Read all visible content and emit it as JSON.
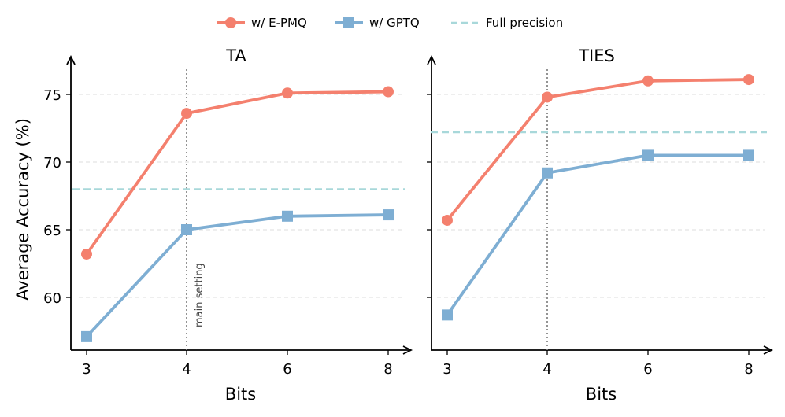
{
  "legend": {
    "placement": "top-center",
    "entries": [
      {
        "label": "w/ E-PMQ",
        "color": "#F4806E",
        "marker": "circle",
        "style": "solid"
      },
      {
        "label": "w/ GPTQ",
        "color": "#7EAED3",
        "marker": "square",
        "style": "solid"
      },
      {
        "label": "Full precision",
        "color": "#A8D8DA",
        "marker": "none",
        "style": "dashed"
      }
    ]
  },
  "ylabel_text": "Average Accuracy (%)",
  "chart_data": [
    {
      "type": "line",
      "title": "TA",
      "xlabel": "Bits",
      "ylabel": "Average Accuracy (%)",
      "categories": [
        "3",
        "4",
        "6",
        "8"
      ],
      "x": [
        3,
        4,
        6,
        8
      ],
      "ylim": [
        56.0,
        77.5
      ],
      "yticks": [
        60,
        65,
        70,
        75
      ],
      "ytick_labels": [
        "60",
        "65",
        "70",
        "75"
      ],
      "grid": "y-dashed",
      "series": [
        {
          "name": "w/ E-PMQ",
          "color": "#F4806E",
          "marker": "circle",
          "values": [
            63.2,
            73.6,
            75.1,
            75.2
          ]
        },
        {
          "name": "w/ GPTQ",
          "color": "#7EAED3",
          "marker": "square",
          "values": [
            57.1,
            65.0,
            66.0,
            66.1
          ]
        }
      ],
      "reference_line": {
        "name": "Full precision",
        "value": 68.0,
        "color": "#A8D8DA"
      },
      "annotation": {
        "text": "main setting",
        "x": 4
      }
    },
    {
      "type": "line",
      "title": "TIES",
      "xlabel": "Bits",
      "ylabel": "",
      "categories": [
        "3",
        "4",
        "6",
        "8"
      ],
      "x": [
        3,
        4,
        6,
        8
      ],
      "ylim": [
        56.0,
        77.5
      ],
      "yticks": [
        60,
        65,
        70,
        75
      ],
      "ytick_labels": [
        "",
        "",
        "",
        ""
      ],
      "grid": "y-dashed",
      "series": [
        {
          "name": "w/ E-PMQ",
          "color": "#F4806E",
          "marker": "circle",
          "values": [
            65.7,
            74.8,
            76.0,
            76.1
          ]
        },
        {
          "name": "w/ GPTQ",
          "color": "#7EAED3",
          "marker": "square",
          "values": [
            58.7,
            69.2,
            70.5,
            70.5
          ]
        }
      ],
      "reference_line": {
        "name": "Full precision",
        "value": 72.2,
        "color": "#A8D8DA"
      },
      "annotation": {
        "text": "",
        "x": 4
      }
    }
  ]
}
